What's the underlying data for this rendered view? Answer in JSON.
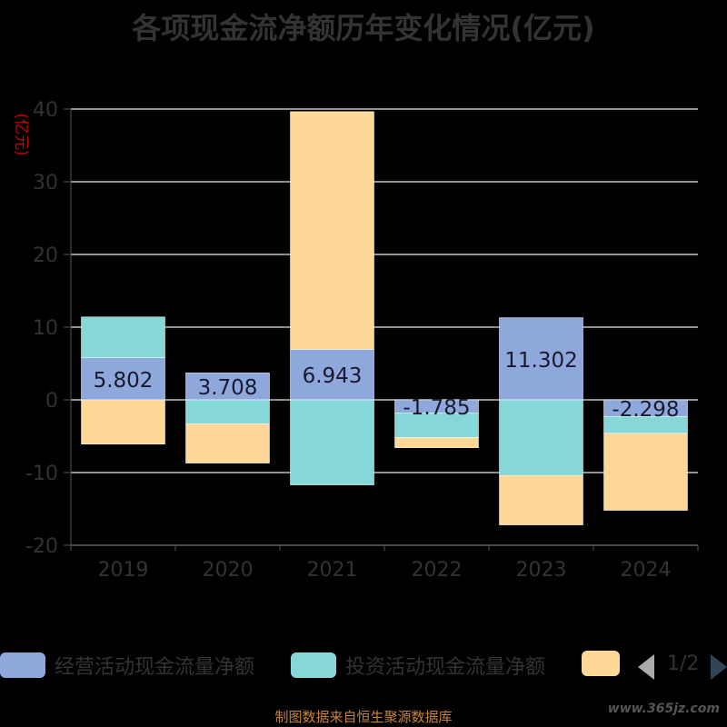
{
  "title": "各项现金流净额历年变化情况(亿元)",
  "chart_data": {
    "type": "bar",
    "stacked": true,
    "categories": [
      "2019",
      "2020",
      "2021",
      "2022",
      "2023",
      "2024"
    ],
    "y_unit_label": "(亿元)",
    "ylim": [
      -20,
      40
    ],
    "yticks": [
      -20,
      -10,
      0,
      10,
      20,
      30,
      40
    ],
    "grid": true,
    "series": [
      {
        "name": "经营活动现金流量净额",
        "color": "#8fa8dc",
        "values": [
          5.802,
          3.708,
          6.943,
          -1.785,
          11.302,
          -2.298
        ],
        "labels": [
          "5.802",
          "3.708",
          "6.943",
          "-1.785",
          "11.302",
          "-2.298"
        ]
      },
      {
        "name": "投资活动现金流量净额",
        "color": "#86d8d8",
        "values": [
          5.6,
          -3.3,
          -11.7,
          -3.4,
          -10.4,
          -2.3
        ]
      },
      {
        "name": "",
        "color": "#ffd898",
        "values": [
          -6.1,
          -5.4,
          32.7,
          -1.4,
          -6.8,
          -10.6
        ]
      }
    ]
  },
  "legend": {
    "items": [
      {
        "label": "经营活动现金流量净额",
        "color": "#8fa8dc"
      },
      {
        "label": "投资活动现金流量净额",
        "color": "#86d8d8"
      },
      {
        "label": "",
        "color": "#ffd898"
      }
    ],
    "pager": "1/2"
  },
  "footer": "制图数据来自恒生聚源数据库",
  "watermark": "www.365jz.com"
}
